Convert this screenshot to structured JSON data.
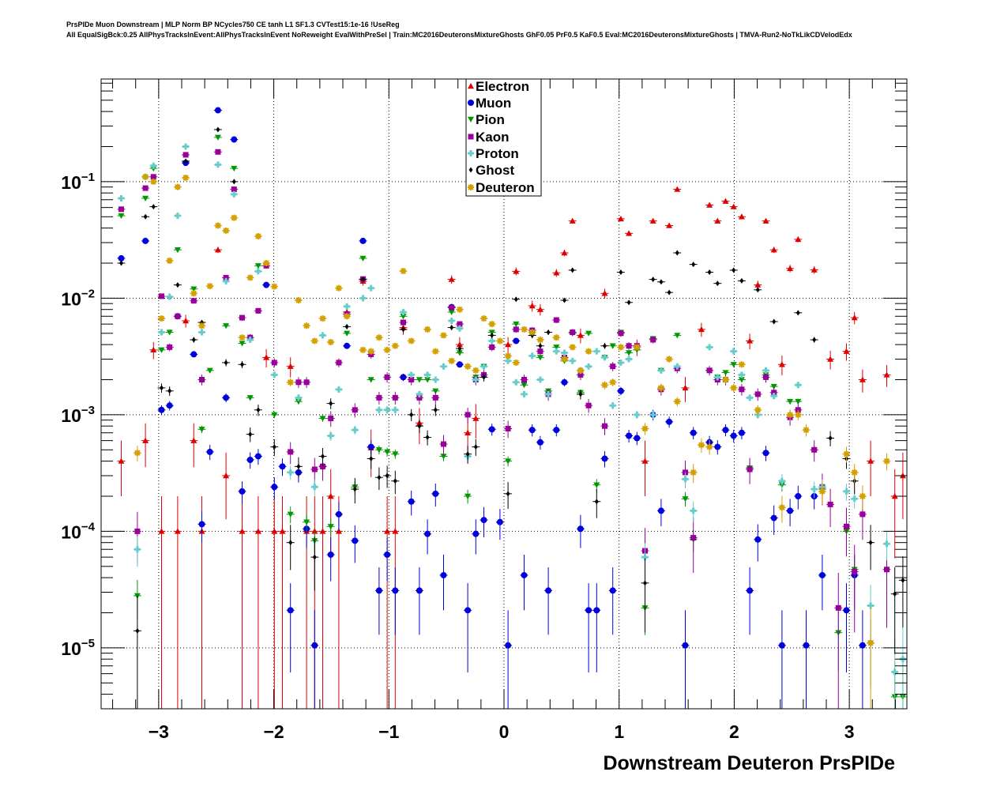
{
  "chart_data": {
    "type": "scatter",
    "title_lines": [
      "PrsPIDe Muon Downstream | MLP Norm BP NCycles750 CE tanh L1 SF1.3 CVTest15:1e-16 !UseReg",
      "All EqualSigBck:0.25 AllPhysTracksInEvent:AllPhysTracksInEvent NoReweight EvalWithPreSel | Train:MC2016DeuteronsMixtureGhosts GhF0.05 PrF0.5 KaF0.5 Eval:MC2016DeuteronsMixtureGhosts | TMVA-Run2-NoTkLikCDVelodEdx"
    ],
    "xlabel": "Downstream Deuteron PrsPIDe",
    "ylabel": "",
    "xlim": [
      -3.5,
      3.5
    ],
    "ylim": [
      3e-06,
      0.76
    ],
    "yscale": "log",
    "grid": true,
    "legend_position": "top-center",
    "binning": {
      "nbins": 100,
      "xmin": -3.5,
      "xmax": 3.5
    },
    "x_ticks": [
      {
        "value": -3,
        "label": "−3"
      },
      {
        "value": -2,
        "label": "−2"
      },
      {
        "value": -1,
        "label": "−1"
      },
      {
        "value": 0,
        "label": "0"
      },
      {
        "value": 1,
        "label": "1"
      },
      {
        "value": 2,
        "label": "2"
      },
      {
        "value": 3,
        "label": "3"
      }
    ],
    "y_ticks": [
      {
        "value": 0.1,
        "base": "10",
        "exp": "−1"
      },
      {
        "value": 0.01,
        "base": "10",
        "exp": "−2"
      },
      {
        "value": 0.001,
        "base": "10",
        "exp": "−3"
      },
      {
        "value": 0.0001,
        "base": "10",
        "exp": "−4"
      },
      {
        "value": 1e-05,
        "base": "10",
        "exp": "−5"
      }
    ],
    "series": [
      {
        "name": "Electron",
        "color": "#e00000",
        "marker": "triangle-up",
        "values": [
          null,
          null,
          0.0004,
          null,
          null,
          0.0006,
          0.0036,
          0.0001,
          null,
          0.0001,
          0.0064,
          0.0006,
          0.0001,
          null,
          0.026,
          0.0003,
          null,
          0.0001,
          null,
          0.0001,
          0.0031,
          0.0001,
          0.0001,
          0.0026,
          null,
          0.0001,
          0.0001,
          0.0001,
          0.0002,
          0.0001,
          0.0076,
          null,
          0.014,
          0.00052,
          null,
          0.0001,
          0.0001,
          0.0056,
          null,
          0.00085,
          null,
          null,
          null,
          0.0145,
          0.004,
          0.0007,
          0.00093,
          null,
          null,
          null,
          0.004,
          0.017,
          null,
          0.0086,
          0.008,
          null,
          0.0165,
          0.0245,
          0.046,
          0.0048,
          null,
          null,
          0.011,
          null,
          0.048,
          0.036,
          0.0038,
          0.0004,
          0.046,
          null,
          0.042,
          0.086,
          0.0017,
          null,
          0.0054,
          0.063,
          0.046,
          0.068,
          0.061,
          0.05,
          0.0043,
          0.013,
          0.046,
          0.026,
          0.0027,
          0.018,
          0.032,
          null,
          0.0175,
          null,
          0.003,
          null,
          0.0035,
          0.0068,
          0.002,
          0.0004,
          null,
          0.0022,
          0.0002,
          0.0003
        ]
      },
      {
        "name": "Muon",
        "color": "#0000dd",
        "marker": "circle",
        "values": [
          null,
          null,
          0.022,
          null,
          null,
          0.031,
          null,
          0.0011,
          0.0012,
          0.007,
          0.145,
          0.0033,
          0.000115,
          0.00048,
          0.41,
          0.0014,
          0.23,
          0.00022,
          0.00041,
          0.00044,
          0.013,
          0.00024,
          0.00036,
          2.1e-05,
          0.00032,
          0.000105,
          1.05e-05,
          0.00036,
          6.3e-05,
          0.00014,
          0.0039,
          8.3e-05,
          0.031,
          0.00053,
          3.1e-05,
          6.3e-05,
          3.1e-05,
          0.0021,
          0.00018,
          3.1e-05,
          9.5e-05,
          0.00021,
          4.2e-05,
          0.0084,
          0.0027,
          2.1e-05,
          9.5e-05,
          0.000125,
          0.00075,
          0.00012,
          1.05e-05,
          0.0043,
          4.2e-05,
          0.00074,
          0.00058,
          3.1e-05,
          0.00074,
          0.0019,
          null,
          0.000105,
          2.1e-05,
          2.1e-05,
          0.00042,
          3.1e-05,
          0.0016,
          0.00066,
          0.00063,
          null,
          0.001,
          0.00015,
          0.00087,
          null,
          1.05e-05,
          0.0007,
          null,
          0.00058,
          0.00053,
          0.00074,
          0.00066,
          0.0007,
          3.1e-05,
          8.5e-05,
          0.00047,
          0.00013,
          1.05e-05,
          0.00015,
          0.0002,
          1.05e-05,
          0.0002,
          4.2e-05,
          null,
          null,
          2.1e-05,
          4.2e-05,
          1.05e-05,
          null,
          null,
          null,
          null,
          null
        ]
      },
      {
        "name": "Pion",
        "color": "#009900",
        "marker": "triangle-down",
        "values": [
          null,
          null,
          0.051,
          null,
          2.8e-05,
          0.072,
          0.13,
          0.0036,
          0.0051,
          0.026,
          null,
          0.012,
          0.00075,
          0.0024,
          0.24,
          0.0058,
          0.13,
          0.0041,
          0.0014,
          0.019,
          null,
          0.001,
          null,
          0.00014,
          0.0013,
          0.00012,
          8.3e-05,
          0.00093,
          0.00011,
          null,
          0.005,
          0.00024,
          0.022,
          0.002,
          0.0005,
          0.00048,
          0.00046,
          0.007,
          0.002,
          0.002,
          0.002,
          0.0016,
          0.00044,
          0.0076,
          0.0034,
          0.0002,
          0.0021,
          0.0026,
          0.0051,
          null,
          0.0004,
          0.006,
          0.0018,
          0.0048,
          0.0031,
          0.0016,
          0.0038,
          0.0029,
          0.005,
          0.00155,
          0.005,
          0.00025,
          0.0031,
          0.0039,
          0.0051,
          0.0034,
          0.0036,
          2.2e-05,
          0.0045,
          0.0024,
          null,
          0.0048,
          0.00019,
          8.5e-05,
          null,
          0.0024,
          0.0021,
          0.0023,
          0.0027,
          0.002,
          0.00035,
          0.0015,
          0.0022,
          0.00175,
          0.00025,
          0.0013,
          0.0013,
          null,
          0.0005,
          0.00023,
          null,
          1.35e-05,
          0.0001,
          4.7e-05,
          null,
          1.1e-05,
          null,
          null,
          3.8e-06,
          3.8e-06
        ]
      },
      {
        "name": "Kaon",
        "color": "#990099",
        "marker": "square",
        "values": [
          null,
          null,
          0.058,
          null,
          0.0001,
          0.088,
          0.11,
          0.0104,
          0.0038,
          0.007,
          0.17,
          0.0095,
          0.002,
          null,
          0.18,
          0.015,
          0.086,
          0.0068,
          0.0046,
          0.0078,
          0.019,
          0.0028,
          null,
          0.00048,
          0.0019,
          0.0019,
          0.00034,
          0.00036,
          0.00093,
          0.0028,
          0.0073,
          0.0011,
          0.0146,
          0.0033,
          0.0014,
          0.0021,
          0.0014,
          0.0062,
          0.002,
          0.0014,
          null,
          0.0014,
          0.00056,
          0.0083,
          0.006,
          0.001,
          0.002,
          0.0022,
          0.0038,
          null,
          0.00076,
          0.0054,
          0.002,
          0.0053,
          0.0035,
          0.0015,
          0.0065,
          0.0031,
          0.0051,
          0.0022,
          0.0012,
          null,
          0.0008,
          0.0026,
          0.005,
          0.0039,
          0.0039,
          6.8e-05,
          0.0044,
          0.00165,
          null,
          0.0025,
          0.00032,
          8.8e-05,
          null,
          0.0024,
          0.002,
          0.002,
          null,
          0.00165,
          0.00034,
          0.0015,
          0.0021,
          0.00155,
          null,
          0.00095,
          0.0011,
          null,
          0.0005,
          0.00024,
          0.00017,
          2.2e-05,
          0.00011,
          4.5e-05,
          0.00014,
          null,
          null,
          4.7e-05,
          null,
          null
        ]
      },
      {
        "name": "Proton",
        "color": "#66cccc",
        "marker": "cross",
        "values": [
          null,
          null,
          0.072,
          null,
          7e-05,
          0.11,
          0.137,
          0.0051,
          0.0103,
          0.051,
          0.2,
          null,
          0.0051,
          null,
          0.14,
          0.014,
          0.078,
          null,
          0.0044,
          0.017,
          null,
          0.0022,
          null,
          0.00032,
          0.0014,
          null,
          0.00024,
          0.0048,
          0.00066,
          0.00165,
          0.0085,
          0.00074,
          0.01,
          0.0122,
          0.0011,
          0.0011,
          0.0011,
          0.0076,
          0.0022,
          0.0015,
          0.0022,
          0.002,
          0.0026,
          0.0064,
          0.0055,
          0.00044,
          0.002,
          0.0026,
          0.0043,
          null,
          0.0029,
          0.0019,
          0.0015,
          0.0032,
          0.002,
          0.0015,
          0.0035,
          0.0034,
          0.0029,
          0.0024,
          0.0026,
          0.0035,
          0.0031,
          0.0012,
          0.0028,
          0.003,
          0.001,
          6e-05,
          0.001,
          0.0024,
          null,
          0.0026,
          0.00028,
          0.00015,
          null,
          0.0038,
          0.0021,
          0.002,
          0.0035,
          0.0022,
          0.0014,
          0.001,
          0.0024,
          0.00145,
          0.00027,
          null,
          0.0018,
          null,
          0.00023,
          0.00024,
          null,
          null,
          0.00022,
          0.00019,
          null,
          2.3e-05,
          null,
          7.8e-05,
          6.2e-06,
          8e-06
        ]
      },
      {
        "name": "Ghost",
        "color": "#000000",
        "marker": "diamond",
        "values": [
          null,
          null,
          0.02,
          null,
          1.4e-05,
          0.05,
          0.061,
          0.0017,
          0.0016,
          0.013,
          0.15,
          0.0044,
          0.0062,
          null,
          0.28,
          0.0028,
          0.1,
          0.0027,
          0.00068,
          0.0011,
          null,
          0.00053,
          null,
          8e-05,
          0.00036,
          null,
          6e-05,
          0.00044,
          0.00125,
          null,
          0.0057,
          0.00023,
          0.0145,
          0.00042,
          0.00029,
          0.0003,
          0.00027,
          0.0054,
          0.001,
          0.0008,
          0.00064,
          0.0011,
          null,
          0.0056,
          0.0037,
          0.00046,
          0.00053,
          0.0021,
          0.0048,
          null,
          0.00021,
          0.0098,
          null,
          0.0048,
          0.0039,
          0.0051,
          null,
          0.0096,
          0.0174,
          0.0015,
          null,
          0.00018,
          0.0039,
          null,
          0.0167,
          0.0092,
          null,
          3.6e-05,
          0.0145,
          0.0138,
          0.0112,
          0.0245,
          null,
          0.0195,
          null,
          0.0167,
          0.0134,
          null,
          0.0174,
          0.0141,
          null,
          0.0118,
          null,
          0.0063,
          null,
          null,
          0.0075,
          null,
          0.0044,
          null,
          0.00063,
          null,
          0.00042,
          0.00027,
          null,
          8e-05,
          null,
          null,
          2.9e-05,
          3.8e-05
        ]
      },
      {
        "name": "Deuteron",
        "color": "#d4a000",
        "marker": "star",
        "values": [
          null,
          null,
          null,
          null,
          0.00047,
          0.11,
          0.1,
          0.0067,
          0.021,
          0.09,
          0.108,
          0.011,
          0.0058,
          0.0127,
          0.042,
          0.038,
          0.049,
          0.0046,
          0.015,
          0.034,
          0.02,
          0.0126,
          null,
          0.0019,
          0.0096,
          0.0058,
          0.0043,
          0.0067,
          0.0042,
          0.0122,
          0.007,
          null,
          0.0036,
          0.0035,
          0.0046,
          0.0036,
          0.0039,
          0.0171,
          0.0043,
          null,
          0.0054,
          0.0035,
          0.0048,
          0.0029,
          0.008,
          0.0026,
          0.0024,
          0.0067,
          0.006,
          0.0043,
          0.0032,
          0.0028,
          0.0054,
          0.0051,
          0.0044,
          null,
          0.0046,
          0.003,
          0.0038,
          0.0024,
          0.0035,
          null,
          0.0018,
          0.0019,
          0.0038,
          null,
          0.0038,
          0.00076,
          null,
          0.0017,
          0.003,
          0.0013,
          null,
          0.00032,
          0.00055,
          0.00053,
          null,
          0.002,
          0.0017,
          0.0027,
          null,
          0.0011,
          null,
          null,
          0.00016,
          0.001,
          0.001,
          0.00074,
          null,
          0.00022,
          null,
          null,
          0.00046,
          0.00032,
          0.0002,
          1.1e-05,
          null,
          0.0004,
          null,
          null
        ]
      }
    ]
  }
}
